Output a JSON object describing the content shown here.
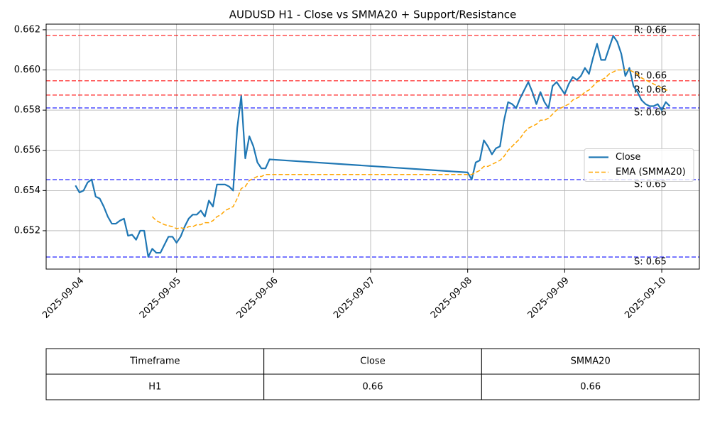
{
  "chart_data": {
    "type": "line",
    "title": "AUDUSD H1 - Close vs SMMA20 + Support/Resistance",
    "x": [
      -1,
      0,
      1,
      2,
      3,
      4,
      5,
      6,
      7,
      8,
      9,
      10,
      11,
      12,
      13,
      14,
      15,
      16,
      17,
      18,
      19,
      20,
      21,
      22,
      23,
      24,
      25,
      26,
      27,
      28,
      29,
      30,
      31,
      32,
      33,
      34,
      35,
      36,
      37,
      38,
      39,
      40,
      41,
      42,
      43,
      44,
      45,
      46,
      47,
      96,
      97,
      98,
      99,
      100,
      101,
      102,
      103,
      104,
      105,
      106,
      107,
      108,
      109,
      110,
      111,
      112,
      113,
      114,
      115,
      116,
      117,
      118,
      119,
      120,
      121,
      122,
      123,
      124,
      125,
      126,
      127,
      128,
      129,
      130,
      131,
      132,
      133,
      134,
      135,
      136,
      137,
      138,
      139,
      140,
      141,
      142,
      143,
      144,
      145,
      146
    ],
    "xlim": [
      -8.25,
      153.3
    ],
    "xticks": [
      {
        "value": 0,
        "label": "2025-09-04"
      },
      {
        "value": 24,
        "label": "2025-09-05"
      },
      {
        "value": 48,
        "label": "2025-09-06"
      },
      {
        "value": 72,
        "label": "2025-09-07"
      },
      {
        "value": 96,
        "label": "2025-09-08"
      },
      {
        "value": 120,
        "label": "2025-09-09"
      },
      {
        "value": 144,
        "label": "2025-09-10"
      }
    ],
    "ylim": [
      0.65009,
      0.66228
    ],
    "yticks": [
      0.652,
      0.654,
      0.656,
      0.658,
      {
        "value": 0.66,
        "label": "0.660"
      },
      0.662
    ],
    "grid": true,
    "legend": "center right",
    "series": [
      {
        "name": "Close",
        "color": "#1f77b4",
        "style": "solid",
        "values": [
          0.65425,
          0.6539,
          0.654,
          0.6544,
          0.65455,
          0.6537,
          0.6536,
          0.6532,
          0.6527,
          0.65235,
          0.65235,
          0.6525,
          0.6526,
          0.65175,
          0.6518,
          0.65155,
          0.652,
          0.652,
          0.6507,
          0.6511,
          0.6509,
          0.6509,
          0.6513,
          0.6517,
          0.6517,
          0.6514,
          0.6517,
          0.6522,
          0.6526,
          0.6528,
          0.6528,
          0.653,
          0.6527,
          0.6535,
          0.6532,
          0.6543,
          0.6543,
          0.6543,
          0.6542,
          0.654,
          0.6571,
          0.6587,
          0.6556,
          0.6567,
          0.6562,
          0.6554,
          0.6551,
          0.6551,
          0.65555,
          0.6549,
          0.65455,
          0.6554,
          0.6555,
          0.6565,
          0.6562,
          0.6558,
          0.6561,
          0.6562,
          0.6575,
          0.6584,
          0.6583,
          0.6581,
          0.6586,
          0.659,
          0.6594,
          0.6589,
          0.6583,
          0.6589,
          0.6584,
          0.6581,
          0.6592,
          0.6594,
          0.6591,
          0.6588,
          0.6593,
          0.65965,
          0.6595,
          0.6597,
          0.6601,
          0.6598,
          0.6606,
          0.6613,
          0.6605,
          0.6605,
          0.6611,
          0.6617,
          0.6614,
          0.6608,
          0.6597,
          0.6601,
          0.6592,
          0.6589,
          0.6585,
          0.6583,
          0.6582,
          0.6582,
          0.6583,
          0.658,
          0.6584,
          0.6582
        ]
      },
      {
        "name": "EMA (SMMA20)",
        "color": "#ffa500",
        "style": "dashed",
        "values": [
          null,
          null,
          null,
          null,
          null,
          null,
          null,
          null,
          null,
          null,
          null,
          null,
          null,
          null,
          null,
          null,
          null,
          null,
          null,
          0.6527,
          0.6525,
          0.6524,
          0.6523,
          0.65225,
          0.6522,
          0.6521,
          0.65215,
          0.6521,
          0.6522,
          0.6522,
          0.6523,
          0.6523,
          0.6524,
          0.6524,
          0.6525,
          0.6527,
          0.6528,
          0.653,
          0.6531,
          0.6532,
          0.6536,
          0.6541,
          0.6542,
          0.6545,
          0.6546,
          0.6547,
          0.6547,
          0.6548,
          0.6548,
          0.6548,
          0.6548,
          0.6549,
          0.655,
          0.6552,
          0.6552,
          0.6553,
          0.6554,
          0.6555,
          0.6557,
          0.656,
          0.6562,
          0.6564,
          0.6566,
          0.6569,
          0.6571,
          0.6572,
          0.6573,
          0.6575,
          0.6575,
          0.6576,
          0.6578,
          0.658,
          0.6581,
          0.6582,
          0.6583,
          0.6585,
          0.6586,
          0.6587,
          0.6589,
          0.659,
          0.6592,
          0.6594,
          0.6595,
          0.6596,
          0.6598,
          0.6599,
          0.66,
          0.66,
          0.66,
          0.66,
          0.6599,
          0.6598,
          0.6596,
          0.6595,
          0.6594,
          0.6593,
          0.6592,
          0.6591,
          0.659,
          0.659
        ]
      }
    ],
    "hlines": [
      {
        "value": 0.66172,
        "label": "R: 0.66",
        "color": "red"
      },
      {
        "value": 0.65946,
        "label": "R: 0.66",
        "color": "red"
      },
      {
        "value": 0.65875,
        "label": "R: 0.66",
        "color": "red"
      },
      {
        "value": 0.65811,
        "label": "S: 0.66",
        "color": "blue"
      },
      {
        "value": 0.65454,
        "label": "S: 0.65",
        "color": "blue"
      },
      {
        "value": 0.65069,
        "label": "S: 0.65",
        "color": "blue"
      }
    ]
  },
  "table": {
    "header": [
      "Timeframe",
      "Close",
      "SMMA20"
    ],
    "rows": [
      [
        "H1",
        "0.66",
        "0.66"
      ]
    ]
  }
}
